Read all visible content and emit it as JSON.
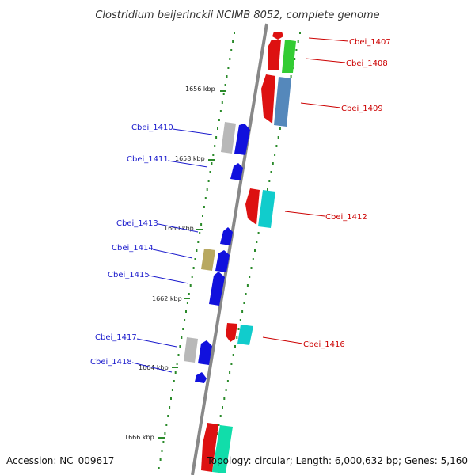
{
  "title": "Clostridium beijerinckii NCIMB 8052, complete genome",
  "accession": "Accession: NC_009617",
  "topology": "Topology: circular; Length: 6,000,632 bp; Genes: 5,160",
  "kbp_labels": [
    "1656 kbp",
    "1658 kbp",
    "1660 kbp",
    "1662 kbp",
    "1664 kbp",
    "1666 kbp"
  ],
  "colors": {
    "red": "#dd1111",
    "green": "#33cc33",
    "steel": "#5588bb",
    "blue": "#1111dd",
    "cyan": "#11cccc",
    "gray": "#b8b8b8",
    "olive": "#b8a860",
    "teal": "#11ddaa",
    "label_right": "#cc0000",
    "label_left": "#1a1acc",
    "axis": "#888888",
    "tick": "#2a8a2a"
  },
  "genes": [
    {
      "label": "Cbei_1407",
      "side": "right"
    },
    {
      "label": "Cbei_1408",
      "side": "right"
    },
    {
      "label": "Cbei_1409",
      "side": "right"
    },
    {
      "label": "Cbei_1410",
      "side": "left"
    },
    {
      "label": "Cbei_1411",
      "side": "left"
    },
    {
      "label": "Cbei_1412",
      "side": "right"
    },
    {
      "label": "Cbei_1413",
      "side": "left"
    },
    {
      "label": "Cbei_1414",
      "side": "left"
    },
    {
      "label": "Cbei_1415",
      "side": "left"
    },
    {
      "label": "Cbei_1416",
      "side": "right"
    },
    {
      "label": "Cbei_1417",
      "side": "left"
    },
    {
      "label": "Cbei_1418",
      "side": "left"
    }
  ]
}
